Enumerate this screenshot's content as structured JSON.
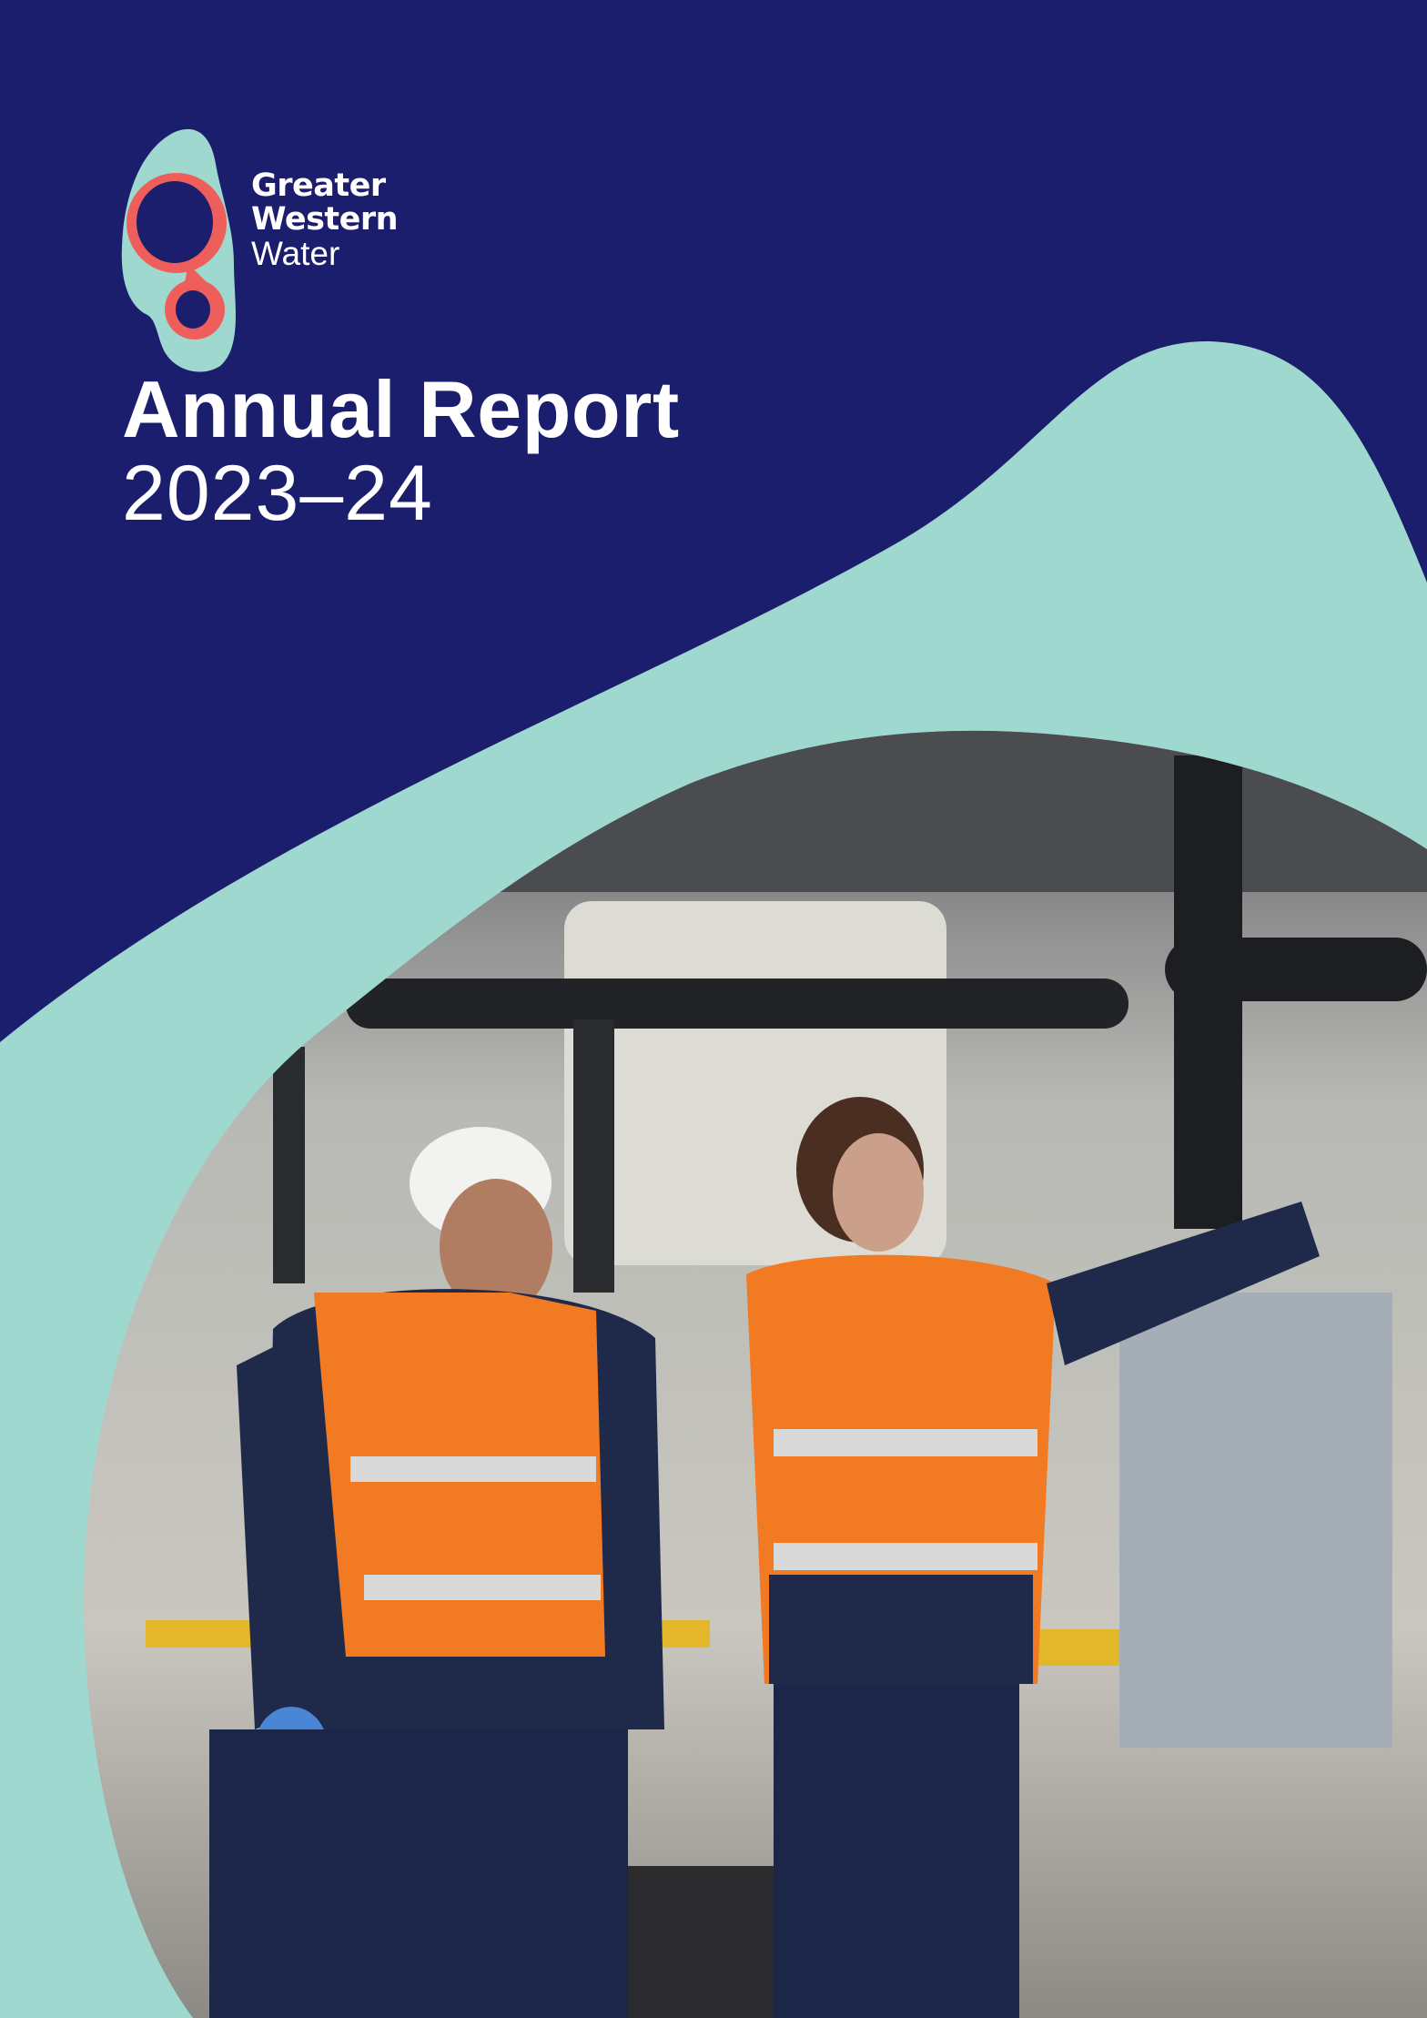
{
  "brand": {
    "line1": "Greater",
    "line2": "Western",
    "line3": "Water",
    "colors": {
      "navy": "#1b1d6d",
      "teal": "#9fd8cf",
      "coral": "#ee5f5b"
    }
  },
  "cover": {
    "title": "Annual Report",
    "year": "2023–24"
  },
  "photo": {
    "subject": "two workers in orange high-visibility vests in a water treatment plant"
  }
}
